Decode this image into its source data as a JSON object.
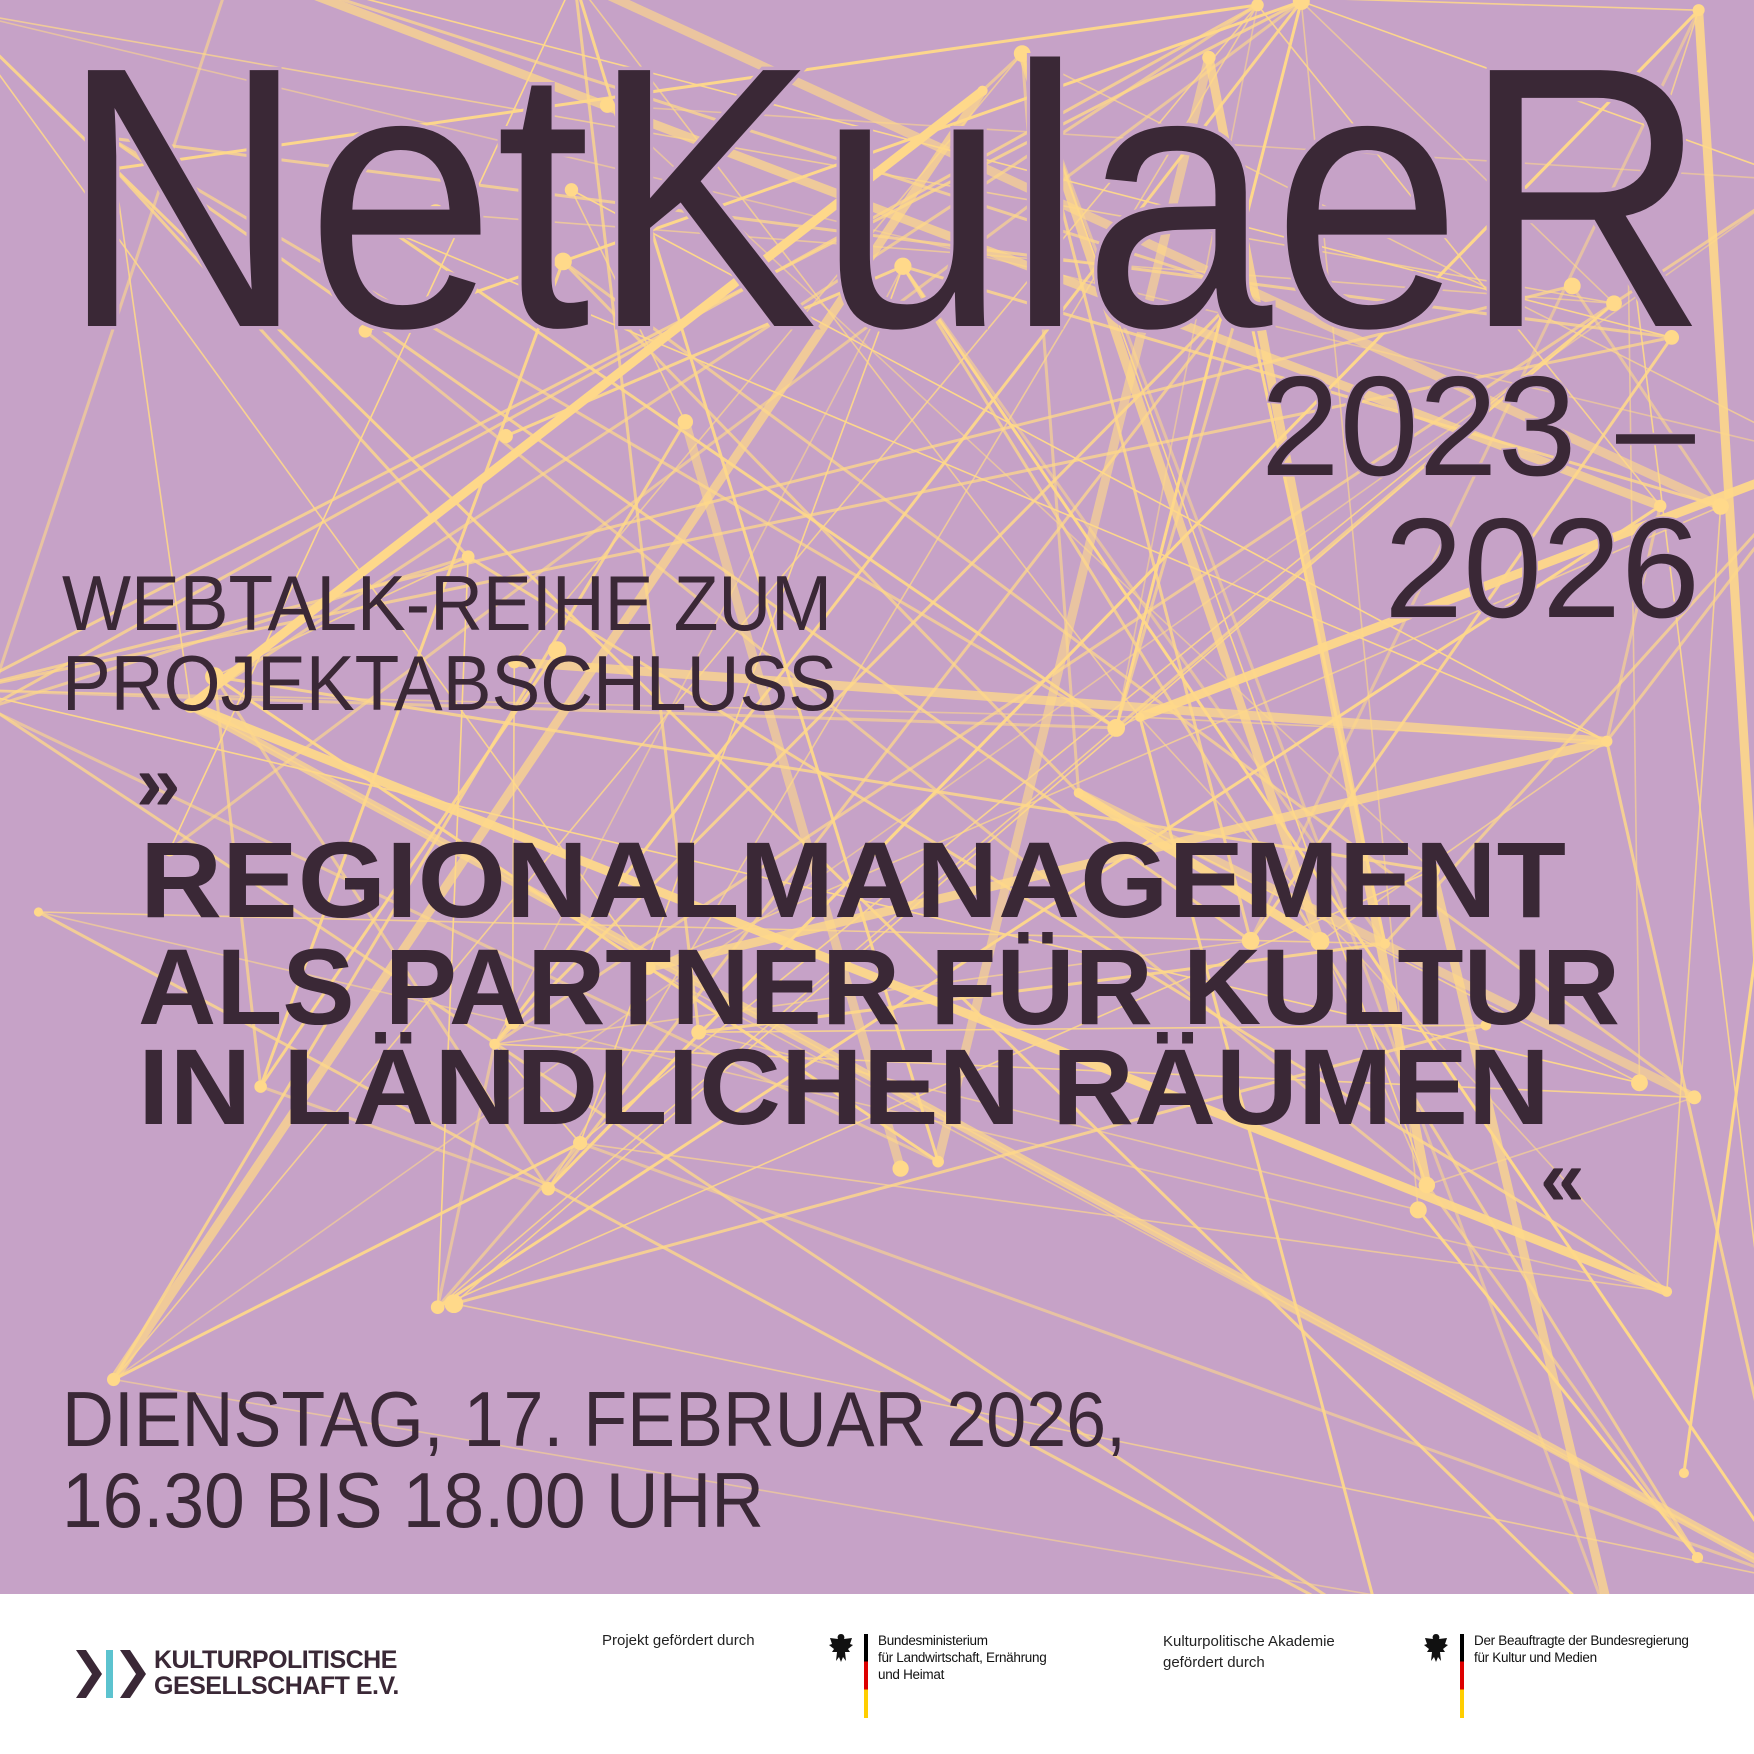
{
  "colors": {
    "background": "#c6a2c7",
    "network": "#ffd98a",
    "text": "#3a2836"
  },
  "header": {
    "title": "NetKulaeR",
    "years_line1": "2023 –",
    "years_line2": "2026"
  },
  "subtitle": {
    "line1": "WEBTALK-REIHE ZUM",
    "line2": "PROJEKTABSCHLUSS"
  },
  "topic": {
    "open_quote": "»",
    "line1": "REGIONALMANAGEMENT",
    "line2": "ALS PARTNER FÜR KULTUR",
    "line3": "IN LÄNDLICHEN RÄUMEN",
    "close_quote": "«"
  },
  "date": {
    "line1": "DIENSTAG, 17. FEBRUAR 2026,",
    "line2": "16.30 BIS 18.00 UHR"
  },
  "footer": {
    "kpg_line1": "KULTURPOLITISCHE",
    "kpg_line2": "GESELLSCHAFT E.V.",
    "funded_label": "Projekt gefördert durch",
    "ministry_line1": "Bundesministerium",
    "ministry_line2": "für Landwirtschaft, Ernährung",
    "ministry_line3": "und Heimat",
    "academy_line1": "Kulturpolitische Akademie",
    "academy_line2": "gefördert durch",
    "bkm_line1": "Der Beauftragte der Bundesregierung",
    "bkm_line2": "für Kultur und Medien"
  }
}
